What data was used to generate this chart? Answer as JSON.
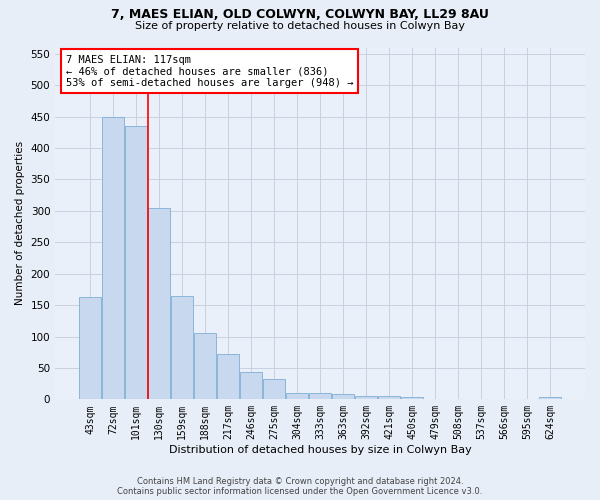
{
  "title": "7, MAES ELIAN, OLD COLWYN, COLWYN BAY, LL29 8AU",
  "subtitle": "Size of property relative to detached houses in Colwyn Bay",
  "xlabel": "Distribution of detached houses by size in Colwyn Bay",
  "ylabel": "Number of detached properties",
  "categories": [
    "43sqm",
    "72sqm",
    "101sqm",
    "130sqm",
    "159sqm",
    "188sqm",
    "217sqm",
    "246sqm",
    "275sqm",
    "304sqm",
    "333sqm",
    "363sqm",
    "392sqm",
    "421sqm",
    "450sqm",
    "479sqm",
    "508sqm",
    "537sqm",
    "566sqm",
    "595sqm",
    "624sqm"
  ],
  "values": [
    163,
    450,
    435,
    305,
    165,
    105,
    72,
    43,
    32,
    10,
    10,
    8,
    6,
    5,
    4,
    1,
    1,
    1,
    1,
    1,
    3
  ],
  "bar_color": "#c8d8ee",
  "bar_edge_color": "#7fafd4",
  "vline_x": 2.5,
  "vline_color": "red",
  "annotation_text": "7 MAES ELIAN: 117sqm\n← 46% of detached houses are smaller (836)\n53% of semi-detached houses are larger (948) →",
  "annotation_box_color": "white",
  "annotation_box_edge_color": "red",
  "ylim": [
    0,
    560
  ],
  "yticks": [
    0,
    50,
    100,
    150,
    200,
    250,
    300,
    350,
    400,
    450,
    500,
    550
  ],
  "footer": "Contains HM Land Registry data © Crown copyright and database right 2024.\nContains public sector information licensed under the Open Government Licence v3.0.",
  "bg_color": "#e8eef8",
  "plot_bg_color": "#eaf0fa",
  "grid_color": "#c8cfe0",
  "title_fontsize": 9,
  "subtitle_fontsize": 8,
  "xlabel_fontsize": 8,
  "ylabel_fontsize": 7.5,
  "tick_fontsize": 7,
  "annotation_fontsize": 7.5,
  "footer_fontsize": 6
}
